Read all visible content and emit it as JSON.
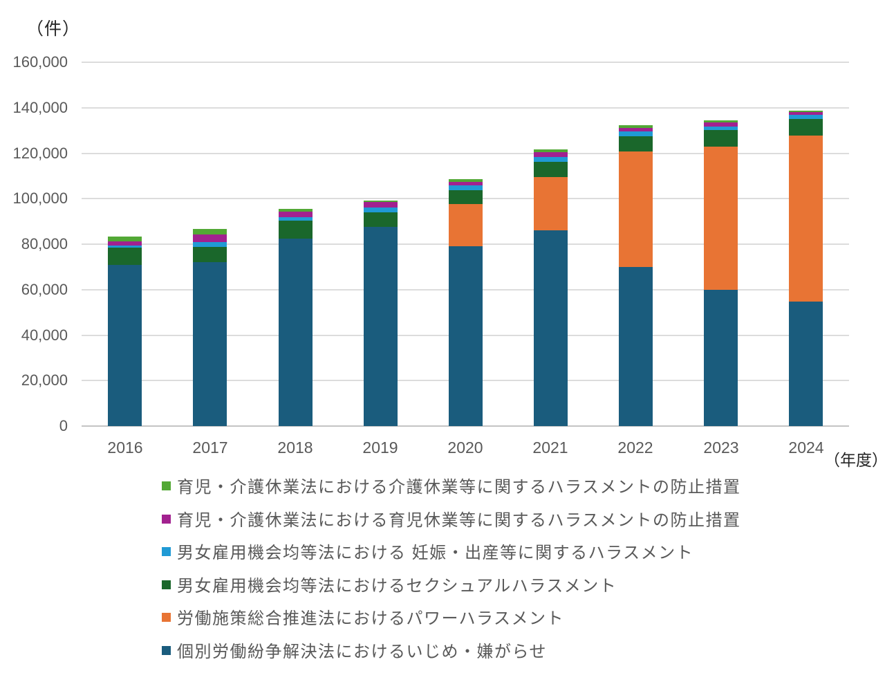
{
  "chart_data": {
    "type": "bar",
    "stacked": true,
    "title": "",
    "y_axis_unit": "（件）",
    "x_axis_unit": "（年度）",
    "categories": [
      "2016",
      "2017",
      "2018",
      "2019",
      "2020",
      "2021",
      "2022",
      "2023",
      "2024"
    ],
    "ylim": [
      0,
      160000
    ],
    "ytick_step": 20000,
    "ytick_labels": [
      "0",
      "20,000",
      "40,000",
      "60,000",
      "80,000",
      "100,000",
      "120,000",
      "140,000",
      "160,000"
    ],
    "grid": "horizontal",
    "legend_position": "bottom-left, one item per row, reverse stack order",
    "series": [
      {
        "name": "個別労働紛争解決法におけるいじめ・嫌がらせ",
        "color": "#1A5C7D",
        "values": [
          70900,
          72100,
          82400,
          87500,
          79200,
          86000,
          69900,
          60000,
          54700
        ]
      },
      {
        "name": "労働施策総合推進法におけるパワーハラスメント",
        "color": "#E87434",
        "values": [
          0,
          0,
          0,
          0,
          18400,
          23500,
          50900,
          63000,
          73200
        ]
      },
      {
        "name": "男女雇用機会均等法におけるセクシュアルハラスメント",
        "color": "#1A672B",
        "values": [
          7600,
          6700,
          7800,
          6600,
          6100,
          6600,
          6700,
          7100,
          7100
        ]
      },
      {
        "name": "男女雇用機会均等法における 妊娠・出産等に関するハラスメント",
        "color": "#209AD5",
        "values": [
          1000,
          2200,
          1800,
          2000,
          2300,
          2300,
          2000,
          1500,
          1800
        ]
      },
      {
        "name": "育児・介護休業法における育児休業等に関するハラスメントの防止措置",
        "color": "#A2218F",
        "values": [
          1800,
          3300,
          2200,
          2500,
          1500,
          2000,
          1700,
          2000,
          1200
        ]
      },
      {
        "name": "育児・介護休業法における介護休業等に関するハラスメントの防止措置",
        "color": "#52A835",
        "values": [
          1900,
          2300,
          1300,
          700,
          1000,
          1400,
          1000,
          800,
          600
        ]
      }
    ]
  },
  "style": {
    "gridline_color": "#DCDCDC",
    "axis_line_color": "#C4C4C4",
    "tick_label_color": "#595959",
    "unit_label_color": "#262626",
    "background_color": "#FFFFFF"
  }
}
